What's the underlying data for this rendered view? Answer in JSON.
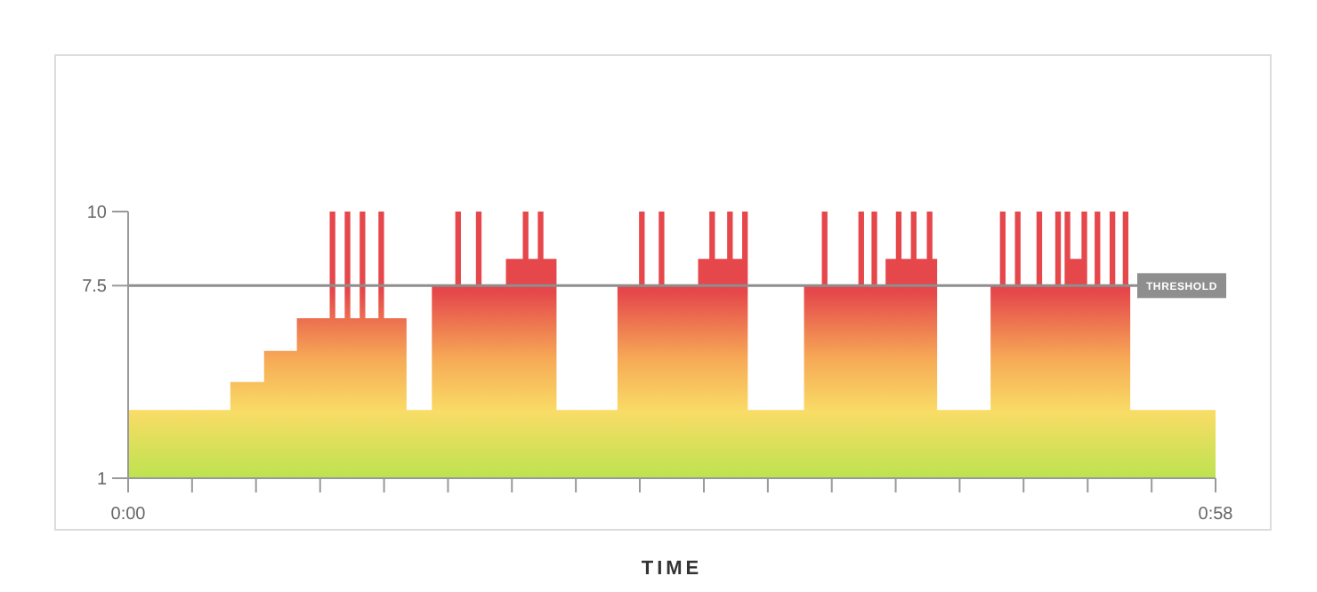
{
  "chart_data": {
    "type": "area",
    "xlabel": "TIME",
    "xlim": [
      0,
      58
    ],
    "xticks": [
      {
        "value": 0,
        "label": "0:00"
      },
      {
        "value": 3.41,
        "label": null
      },
      {
        "value": 6.82,
        "label": null
      },
      {
        "value": 10.24,
        "label": null
      },
      {
        "value": 13.65,
        "label": null
      },
      {
        "value": 17.06,
        "label": null
      },
      {
        "value": 20.47,
        "label": null
      },
      {
        "value": 23.88,
        "label": null
      },
      {
        "value": 27.29,
        "label": null
      },
      {
        "value": 30.71,
        "label": null
      },
      {
        "value": 34.12,
        "label": null
      },
      {
        "value": 37.53,
        "label": null
      },
      {
        "value": 40.94,
        "label": null
      },
      {
        "value": 44.35,
        "label": null
      },
      {
        "value": 47.76,
        "label": null
      },
      {
        "value": 51.18,
        "label": null
      },
      {
        "value": 54.59,
        "label": null
      },
      {
        "value": 58,
        "label": "0:58"
      }
    ],
    "ylim": [
      1,
      10
    ],
    "yticks": [
      10,
      7.5,
      1
    ],
    "grid": false,
    "ref_lines": [
      {
        "axis": "y",
        "value": 7.5,
        "label": "THRESHOLD",
        "color": "#8e8e8e"
      }
    ],
    "series": [
      {
        "color": "#e5474b",
        "x": [
          0,
          5.45,
          5.45,
          7.25,
          7.25,
          9,
          9,
          10.75,
          10.75,
          11.05,
          11.05,
          11.55,
          11.55,
          11.85,
          11.85,
          12.35,
          12.35,
          12.65,
          12.65,
          13.35,
          13.35,
          13.65,
          13.65,
          14.85,
          14.85,
          16.2,
          16.2,
          17.45,
          17.45,
          17.75,
          17.75,
          18.55,
          18.55,
          18.85,
          18.85,
          20.15,
          20.15,
          21.05,
          21.05,
          21.35,
          21.35,
          21.85,
          21.85,
          22.15,
          22.15,
          22.85,
          22.85,
          26.1,
          26.1,
          27.25,
          27.25,
          27.55,
          27.55,
          28.3,
          28.3,
          28.6,
          28.6,
          30.4,
          30.4,
          31,
          31,
          31.3,
          31.3,
          31.95,
          31.95,
          32.25,
          32.25,
          32.75,
          32.75,
          33.05,
          33.05,
          36.05,
          36.05,
          37,
          37,
          37.3,
          37.3,
          38.95,
          38.95,
          39.25,
          39.25,
          39.65,
          39.65,
          39.95,
          39.95,
          40.4,
          40.4,
          40.95,
          40.95,
          41.25,
          41.25,
          41.75,
          41.75,
          42.05,
          42.05,
          42.6,
          42.6,
          42.9,
          42.9,
          43.15,
          43.15,
          46,
          46,
          46.5,
          46.5,
          46.8,
          46.8,
          47.3,
          47.3,
          47.6,
          47.6,
          48.45,
          48.45,
          48.75,
          48.75,
          49.45,
          49.45,
          49.75,
          49.75,
          49.95,
          49.95,
          50.25,
          50.25,
          50.85,
          50.85,
          51.15,
          51.15,
          51.55,
          51.55,
          51.85,
          51.85,
          52.35,
          52.35,
          52.65,
          52.65,
          53.05,
          53.05,
          53.35,
          53.35,
          53.45,
          53.45,
          58
        ],
        "values": [
          3.3,
          3.3,
          4.25,
          4.25,
          5.3,
          5.3,
          6.4,
          6.4,
          10,
          10,
          6.4,
          6.4,
          10,
          10,
          6.4,
          6.4,
          10,
          10,
          6.4,
          6.4,
          10,
          10,
          6.4,
          6.4,
          3.3,
          3.3,
          7.5,
          7.5,
          10,
          10,
          7.5,
          7.5,
          10,
          10,
          7.5,
          7.5,
          8.4,
          8.4,
          10,
          10,
          8.4,
          8.4,
          10,
          10,
          8.4,
          8.4,
          3.3,
          3.3,
          7.5,
          7.5,
          10,
          10,
          7.5,
          7.5,
          10,
          10,
          7.5,
          7.5,
          8.4,
          8.4,
          10,
          10,
          8.4,
          8.4,
          10,
          10,
          8.4,
          8.4,
          10,
          10,
          3.3,
          3.3,
          7.5,
          7.5,
          10,
          10,
          7.5,
          7.5,
          10,
          10,
          7.5,
          7.5,
          10,
          10,
          7.5,
          7.5,
          8.4,
          8.4,
          10,
          10,
          8.4,
          8.4,
          10,
          10,
          8.4,
          8.4,
          10,
          10,
          8.4,
          8.4,
          3.3,
          3.3,
          7.5,
          7.5,
          10,
          10,
          7.5,
          7.5,
          10,
          10,
          7.5,
          7.5,
          10,
          10,
          7.5,
          7.5,
          10,
          10,
          7.5,
          7.5,
          10,
          10,
          8.4,
          8.4,
          10,
          10,
          7.5,
          7.5,
          10,
          10,
          7.5,
          7.5,
          10,
          10,
          7.5,
          7.5,
          10,
          10,
          7.5,
          7.5,
          3.3,
          3.3
        ]
      }
    ]
  }
}
